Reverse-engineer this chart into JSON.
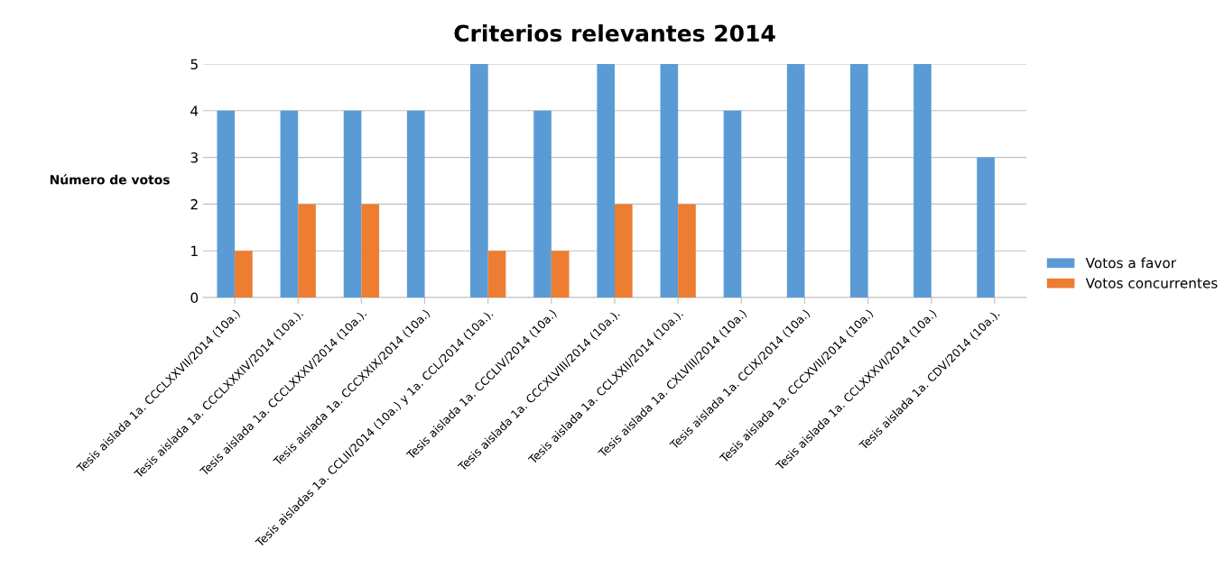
{
  "chart_data": {
    "type": "bar",
    "title": "Criterios relevantes 2014",
    "ylabel": "Número de votos",
    "categories": [
      "Tesis aislada 1a. CCCLXXVII/2014 (10a.)",
      "Tesis aislada 1a. CCCLXXXIV/2014 (10a.).",
      "Tesis aislada 1a. CCCLXXXV/2014 (10a.).",
      "Tesis aislada 1a. CCCXXIX/2014 (10a.)",
      "Tesis aisladas 1a. CCLII/2014 (10a.) y 1a. CCL/2014 (10a.).",
      "Tesis aislada 1a. CCCLIV/2014 (10a.)",
      "Tesis aislada 1a. CCCXLVIII/2014 (10a.).",
      "Tesis aislada 1a. CCLXXII/2014 (10a.).",
      "Tesis aislada 1a. CXLVIII/2014 (10a.)",
      "Tesis aislada 1a. CCIX/2014 (10a.)",
      "Tesis aislada 1a. CCCXVII/2014 (10a.)",
      "Tesis aislada 1a. CCLXXXVI/2014 (10a.)",
      "Tesis aislada 1a. CDV/2014 (10a.)."
    ],
    "series": [
      {
        "name": "Votos a favor",
        "color": "#5b9bd5",
        "values": [
          4,
          4,
          4,
          4,
          5,
          4,
          5,
          5,
          4,
          5,
          5,
          5,
          3
        ]
      },
      {
        "name": "Votos concurrentes",
        "color": "#ed7d31",
        "values": [
          1,
          2,
          2,
          0,
          1,
          1,
          2,
          2,
          0,
          0,
          0,
          0,
          0
        ]
      }
    ],
    "ylim": [
      0,
      5
    ],
    "yticks": [
      0,
      1,
      2,
      3,
      4,
      5
    ],
    "grid": "y",
    "legend": "right"
  }
}
